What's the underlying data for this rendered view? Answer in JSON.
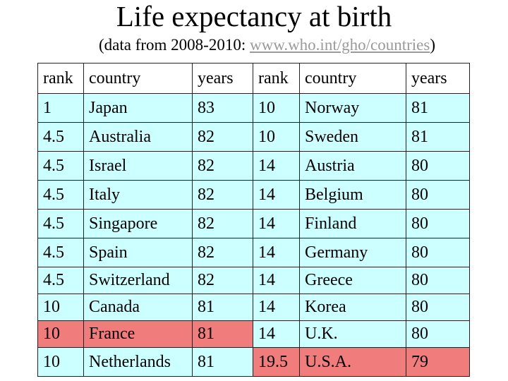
{
  "title": "Life expectancy at birth",
  "subtitle": {
    "prefix": "(data from 2008-2010: ",
    "link": "www.who.int/gho/countries",
    "suffix": ")"
  },
  "colors": {
    "row_cyan": "#ccffff",
    "highlight_red": "#f07c7c",
    "link_gray": "#9a9a9a"
  },
  "table": {
    "headers": [
      "rank",
      "country",
      "years",
      "rank",
      "country",
      "years"
    ],
    "rows": [
      {
        "left": [
          "1",
          "Japan",
          "83"
        ],
        "right": [
          "10",
          "Norway",
          "81"
        ],
        "left_color": "cyan",
        "right_color": "cyan"
      },
      {
        "left": [
          "4.5",
          "Australia",
          "82"
        ],
        "right": [
          "10",
          "Sweden",
          "81"
        ],
        "left_color": "cyan",
        "right_color": "cyan"
      },
      {
        "left": [
          "4.5",
          "Israel",
          "82"
        ],
        "right": [
          "14",
          "Austria",
          "80"
        ],
        "left_color": "cyan",
        "right_color": "cyan"
      },
      {
        "left": [
          "4.5",
          "Italy",
          "82"
        ],
        "right": [
          "14",
          "Belgium",
          "80"
        ],
        "left_color": "cyan",
        "right_color": "cyan"
      },
      {
        "left": [
          "4.5",
          "Singapore",
          "82"
        ],
        "right": [
          "14",
          "Finland",
          "80"
        ],
        "left_color": "cyan",
        "right_color": "cyan"
      },
      {
        "left": [
          "4.5",
          "Spain",
          "82"
        ],
        "right": [
          "14",
          "Germany",
          "80"
        ],
        "left_color": "cyan",
        "right_color": "cyan"
      },
      {
        "left": [
          "4.5",
          "Switzerland",
          "82"
        ],
        "right": [
          "14",
          "Greece",
          "80"
        ],
        "left_color": "cyan",
        "right_color": "cyan"
      },
      {
        "left": [
          "10",
          "Canada",
          "81"
        ],
        "right": [
          "14",
          "Korea",
          "80"
        ],
        "left_color": "cyan",
        "right_color": "cyan"
      },
      {
        "left": [
          "10",
          "France",
          "81"
        ],
        "right": [
          "14",
          "U.K.",
          "80"
        ],
        "left_color": "red",
        "right_color": "cyan"
      },
      {
        "left": [
          "10",
          "Netherlands",
          "81"
        ],
        "right": [
          "19.5",
          "U.S.A.",
          "79"
        ],
        "left_color": "cyan",
        "right_color": "red"
      }
    ]
  }
}
